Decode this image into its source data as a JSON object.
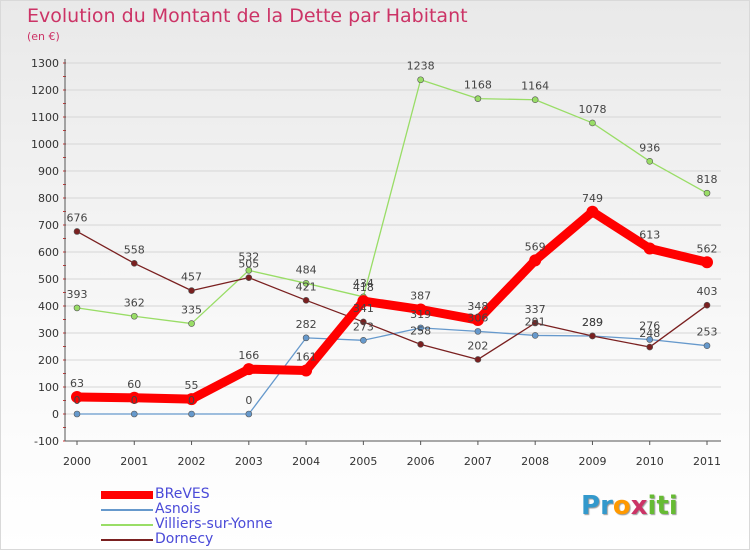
{
  "chart_data": {
    "type": "line",
    "title": "Evolution du Montant de la Dette par Habitant",
    "subtitle": "(en €)",
    "xlabel": "",
    "ylabel": "",
    "x": [
      "2000",
      "2001",
      "2002",
      "2003",
      "2004",
      "2005",
      "2006",
      "2007",
      "2008",
      "2009",
      "2010",
      "2011"
    ],
    "ylim": [
      -100,
      1300
    ],
    "yticks": [
      "-100",
      "0",
      "100",
      "200",
      "300",
      "400",
      "500",
      "600",
      "700",
      "800",
      "900",
      "1000",
      "1100",
      "1200",
      "1300"
    ],
    "grid": "horizontal",
    "legend_position": "bottom-left",
    "series": [
      {
        "name": "BReVES",
        "color": "#ff0000",
        "values": [
          63,
          60,
          55,
          166,
          161,
          418,
          387,
          348,
          569,
          749,
          613,
          562
        ]
      },
      {
        "name": "Asnois",
        "color": "#6699cc",
        "values": [
          0,
          0,
          0,
          0,
          282,
          273,
          319,
          306,
          291,
          289,
          276,
          253
        ]
      },
      {
        "name": "Villiers-sur-Yonne",
        "color": "#99dd66",
        "values": [
          393,
          362,
          335,
          532,
          484,
          434,
          1238,
          1168,
          1164,
          1078,
          936,
          818
        ]
      },
      {
        "name": "Dornecy",
        "color": "#7a2020",
        "values": [
          676,
          558,
          457,
          505,
          421,
          341,
          258,
          202,
          337,
          289,
          248,
          403
        ]
      }
    ]
  },
  "brand": {
    "letters": [
      "P",
      "r",
      "o",
      "x",
      "i",
      "t",
      "i"
    ],
    "colors": [
      "#3399cc",
      "#3399cc",
      "#ff9900",
      "#cc3366",
      "#66bb33",
      "#66bb33",
      "#66bb33"
    ]
  }
}
